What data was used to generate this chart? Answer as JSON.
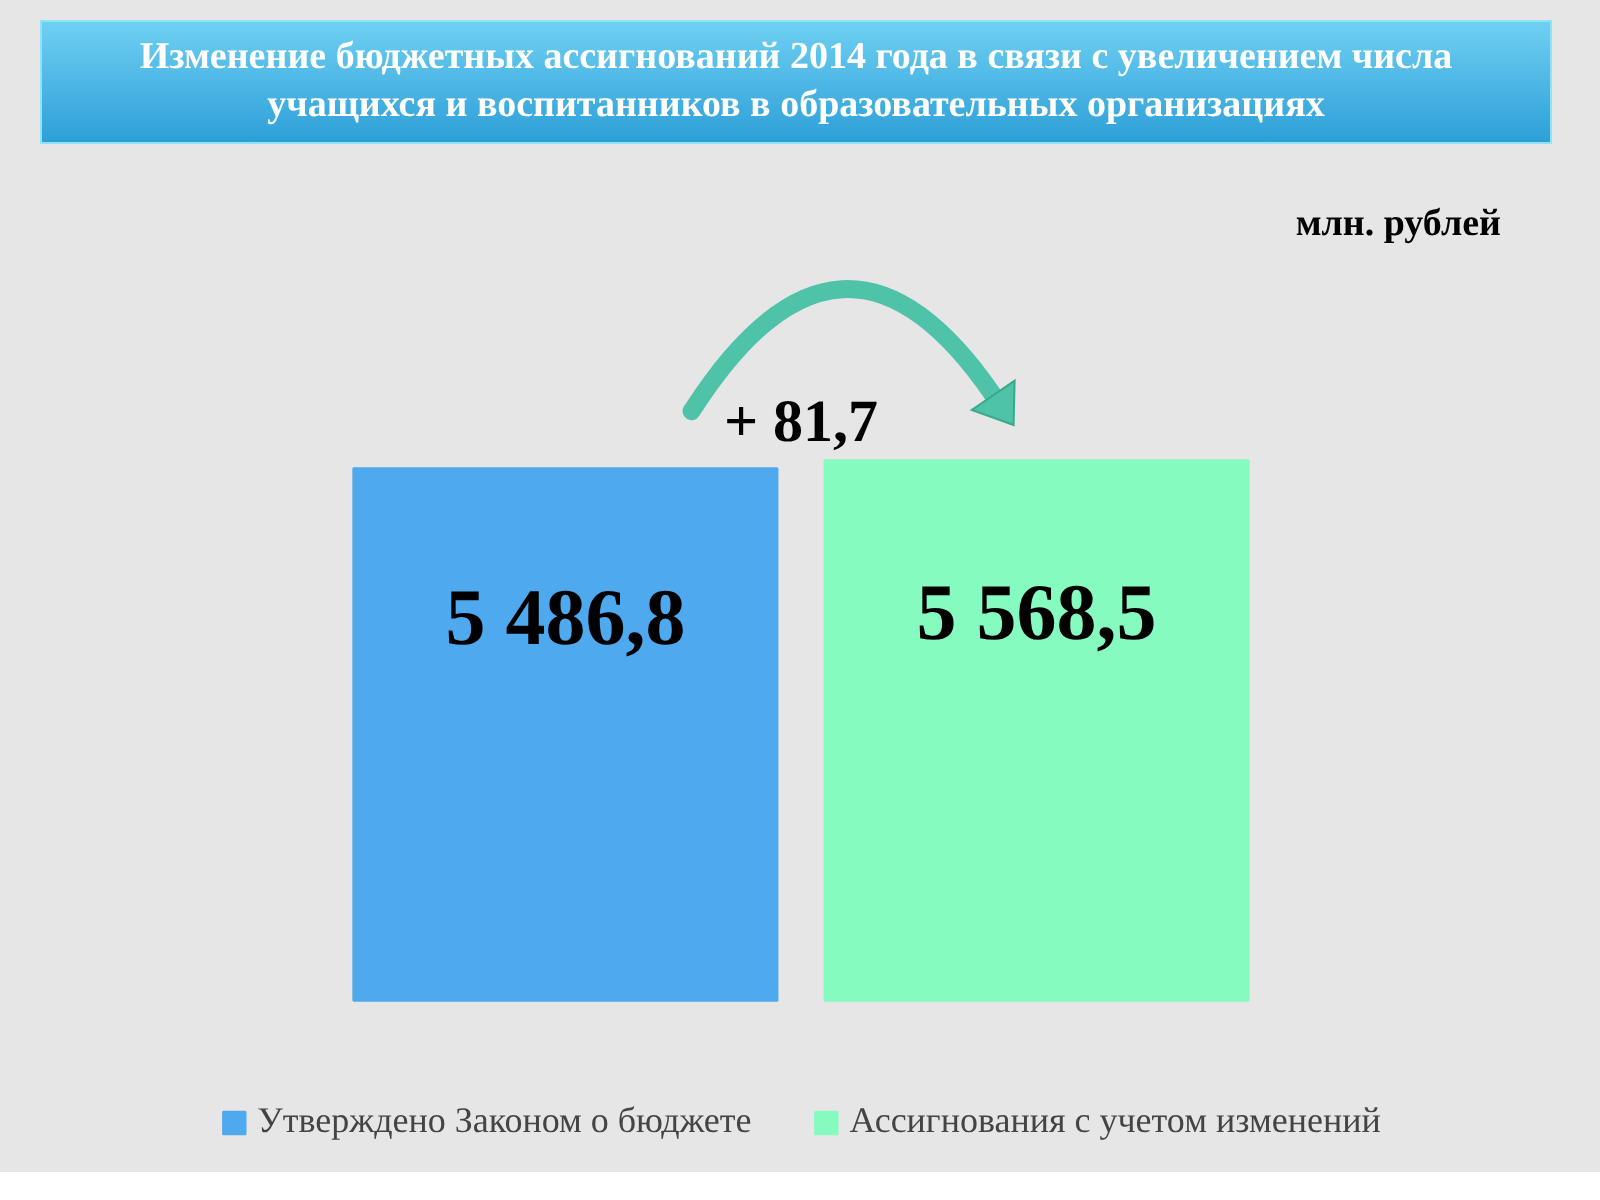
{
  "chart_data": {
    "type": "bar",
    "title": "Изменение бюджетных ассигнований 2014 года в связи с увеличением числа учащихся и воспитанников в образовательных организациях",
    "categories": [
      null
    ],
    "series": [
      {
        "name": "Утверждено Законом о бюджете",
        "color": "#4ea9ee",
        "values": [
          5486.8
        ],
        "value_labels": [
          "5 486,8"
        ]
      },
      {
        "name": "Ассигнования с учетом изменений",
        "color": "#86fbbf",
        "values": [
          5568.5
        ],
        "value_labels": [
          "5 568,5"
        ]
      }
    ],
    "annotations": [
      "млн. рублей",
      "+ 81,7"
    ],
    "legend": "bottom"
  }
}
